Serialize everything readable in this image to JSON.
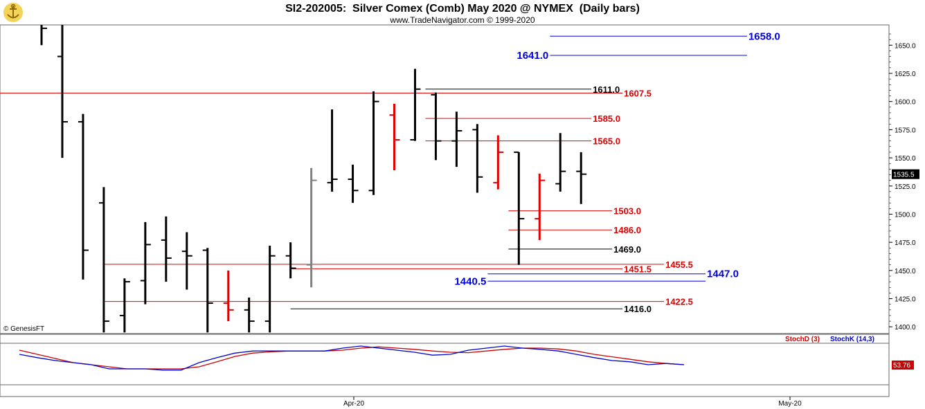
{
  "header": {
    "title": "SI2-202005:  Silver Comex (Comb) May 2020 @ NYMEX  (Daily bars)",
    "subtitle": "www.TradeNavigator.com © 1999-2020"
  },
  "watermark": "© GenesisFT",
  "colors": {
    "up": "#000000",
    "down": "#e00000",
    "neutral": "#808080",
    "red_level": "#e00000",
    "black_level": "#000000",
    "blue_level": "#0000dd",
    "stoch_d": "#cc0000",
    "stoch_k": "#0000cc"
  },
  "chart_data": {
    "type": "ohlc",
    "y_range": [
      1394,
      1668
    ],
    "y_ticks": [
      "1400.0",
      "1425.0",
      "1450.0",
      "1475.0",
      "1500.0",
      "1525.0",
      "1550.0",
      "1575.0",
      "1600.0",
      "1625.0",
      "1650.0"
    ],
    "x_labels": [
      "Apr-20",
      "May-20"
    ],
    "current_price": "1535.5",
    "bars": [
      {
        "h": 1680,
        "l": 1650,
        "o": 1670,
        "c": 1665,
        "color": "up"
      },
      {
        "h": 1680,
        "l": 1550,
        "o": 1640,
        "c": 1582,
        "color": "up"
      },
      {
        "h": 1589,
        "l": 1442,
        "o": 1582,
        "c": 1468,
        "color": "up"
      },
      {
        "h": 1524,
        "l": 1395,
        "o": 1510,
        "c": 1405,
        "color": "up"
      },
      {
        "h": 1443,
        "l": 1395,
        "o": 1410,
        "c": 1440,
        "color": "up"
      },
      {
        "h": 1493,
        "l": 1420,
        "o": 1441,
        "c": 1473,
        "color": "up"
      },
      {
        "h": 1498,
        "l": 1440,
        "o": 1477,
        "c": 1461,
        "color": "up"
      },
      {
        "h": 1484,
        "l": 1433,
        "o": 1467,
        "c": 1463,
        "color": "up"
      },
      {
        "h": 1470,
        "l": 1395,
        "o": 1468,
        "c": 1421,
        "color": "up"
      },
      {
        "h": 1450,
        "l": 1405,
        "o": 1421,
        "c": 1415,
        "color": "down"
      },
      {
        "h": 1426,
        "l": 1395,
        "o": 1415,
        "c": 1405,
        "color": "up"
      },
      {
        "h": 1472,
        "l": 1395,
        "o": 1405,
        "c": 1463,
        "color": "up"
      },
      {
        "h": 1475,
        "l": 1443,
        "o": 1463,
        "c": 1452,
        "color": "up"
      },
      {
        "h": 1541,
        "l": 1435,
        "o": 1455,
        "c": 1530,
        "color": "neutral"
      },
      {
        "h": 1593,
        "l": 1520,
        "o": 1528,
        "c": 1531,
        "color": "up"
      },
      {
        "h": 1544,
        "l": 1510,
        "o": 1531,
        "c": 1521,
        "color": "up"
      },
      {
        "h": 1609,
        "l": 1517,
        "o": 1521,
        "c": 1600,
        "color": "up"
      },
      {
        "h": 1598,
        "l": 1539,
        "o": 1588,
        "c": 1566,
        "color": "down"
      },
      {
        "h": 1629,
        "l": 1565,
        "o": 1566,
        "c": 1611,
        "color": "up"
      },
      {
        "h": 1608,
        "l": 1548,
        "o": 1606,
        "c": 1565,
        "color": "up"
      },
      {
        "h": 1591,
        "l": 1542,
        "o": 1565,
        "c": 1574,
        "color": "up"
      },
      {
        "h": 1580,
        "l": 1519,
        "o": 1575,
        "c": 1533,
        "color": "up"
      },
      {
        "h": 1570,
        "l": 1522,
        "o": 1528,
        "c": 1555,
        "color": "down"
      },
      {
        "h": 1555,
        "l": 1455,
        "o": 1555,
        "c": 1496,
        "color": "up"
      },
      {
        "h": 1536,
        "l": 1477,
        "o": 1496,
        "c": 1530,
        "color": "down"
      },
      {
        "h": 1572,
        "l": 1520,
        "o": 1527,
        "c": 1538,
        "color": "up"
      },
      {
        "h": 1555,
        "l": 1509,
        "o": 1538,
        "c": 1535.5,
        "color": "up"
      }
    ],
    "levels": [
      {
        "value": 1658.0,
        "label": "1658.0",
        "color": "blue_level",
        "from_bar": 24.5,
        "to_bar": 34,
        "label_side": "right"
      },
      {
        "value": 1641.0,
        "label": "1641.0",
        "color": "blue_level",
        "from_bar": 24.5,
        "to_bar": 34,
        "label_side": "left"
      },
      {
        "value": 1611.0,
        "label": "1611.0",
        "color": "black_level",
        "from_bar": 18.5,
        "to_bar": 26.5,
        "label_side": "right"
      },
      {
        "value": 1607.5,
        "label": "1607.5",
        "color": "red_level",
        "from_bar": -3,
        "to_bar": 28,
        "label_side": "right"
      },
      {
        "value": 1585.0,
        "label": "1585.0",
        "color": "red_level",
        "from_bar": 18.5,
        "to_bar": 26.5,
        "label_side": "right"
      },
      {
        "value": 1565.0,
        "label": "1565.0",
        "color": "red_level",
        "from_bar": 18.5,
        "to_bar": 26.5,
        "label_side": "right"
      },
      {
        "value": 1503.0,
        "label": "1503.0",
        "color": "red_level",
        "from_bar": 22.5,
        "to_bar": 27.5,
        "label_side": "right"
      },
      {
        "value": 1486.0,
        "label": "1486.0",
        "color": "red_level",
        "from_bar": 22.5,
        "to_bar": 27.5,
        "label_side": "right"
      },
      {
        "value": 1469.0,
        "label": "1469.0",
        "color": "black_level",
        "from_bar": 22.5,
        "to_bar": 27.5,
        "label_side": "right"
      },
      {
        "value": 1455.5,
        "label": "1455.5",
        "color": "red_level",
        "from_bar": 3,
        "to_bar": 30,
        "label_side": "right"
      },
      {
        "value": 1451.5,
        "label": "1451.5",
        "color": "red_level",
        "from_bar": 12,
        "to_bar": 28,
        "label_side": "right"
      },
      {
        "value": 1447.0,
        "label": "1447.0",
        "color": "blue_level",
        "from_bar": 21.5,
        "to_bar": 32,
        "label_side": "right"
      },
      {
        "value": 1440.5,
        "label": "1440.5",
        "color": "blue_level",
        "from_bar": 21.5,
        "to_bar": 32,
        "label_side": "left"
      },
      {
        "value": 1422.5,
        "label": "1422.5",
        "color": "red_level",
        "from_bar": 3,
        "to_bar": 30,
        "label_side": "right"
      },
      {
        "value": 1416.0,
        "label": "1416.0",
        "color": "black_level",
        "from_bar": 12,
        "to_bar": 28,
        "label_side": "right"
      }
    ],
    "indicator": {
      "legend_d": "StochD (3)",
      "legend_k": "StochK (14,3)",
      "last_value": "53.76",
      "stoch_k": [
        80,
        72,
        65,
        60,
        55,
        45,
        45,
        45,
        42,
        42,
        60,
        72,
        83,
        88,
        88,
        88,
        88,
        88,
        95,
        100,
        95,
        90,
        85,
        78,
        80,
        90,
        95,
        100,
        95,
        92,
        88,
        80,
        72,
        65,
        62,
        55,
        58,
        55
      ],
      "stoch_d": [
        90,
        80,
        70,
        60,
        55,
        50,
        45,
        45,
        45,
        45,
        50,
        62,
        75,
        83,
        86,
        88,
        88,
        88,
        90,
        95,
        98,
        95,
        92,
        88,
        85,
        84,
        88,
        92,
        95,
        95,
        93,
        88,
        80,
        74,
        68,
        62,
        58,
        55
      ]
    }
  }
}
